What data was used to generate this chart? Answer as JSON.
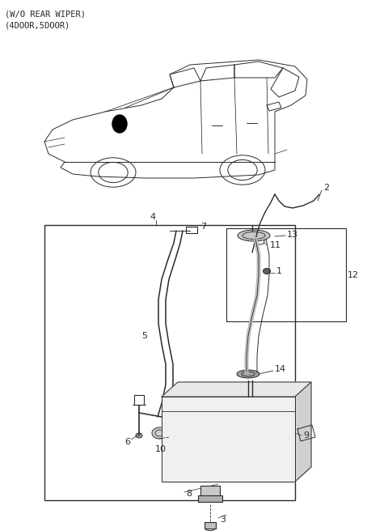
{
  "header_text": "(W/O REAR WIPER)\n(4DOOR,5DOOR)",
  "bg_color": "#ffffff",
  "lc": "#2a2a2a",
  "gray": "#b0b0b0",
  "light_gray": "#d8d8d8",
  "figsize": [
    4.8,
    6.56
  ],
  "dpi": 100
}
